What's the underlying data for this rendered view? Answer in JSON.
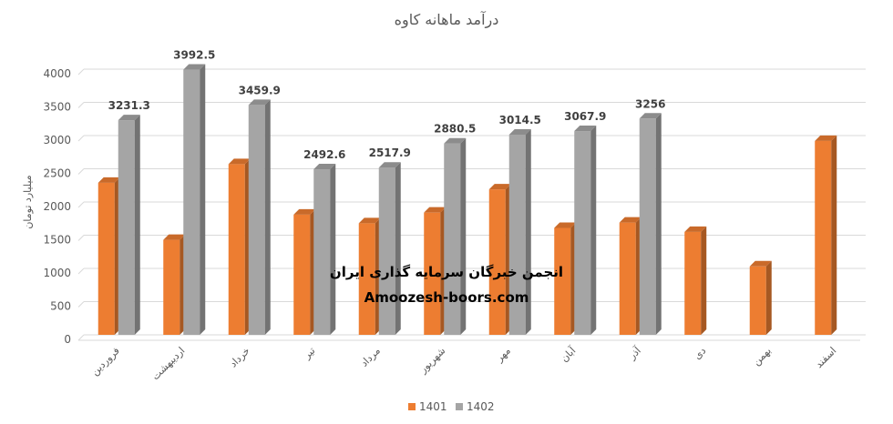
{
  "chart_data": {
    "type": "bar",
    "title": "درآمد ماهانه کاوه",
    "ylabel": "میلیارد تومان",
    "xlabel": "",
    "ylim": [
      0,
      4000
    ],
    "yticks": [
      0,
      500,
      1000,
      1500,
      2000,
      2500,
      3000,
      3500,
      4000
    ],
    "grid": true,
    "legend_position": "bottom",
    "categories": [
      "فروردین",
      "اردیبهشت",
      "خرداد",
      "تیر",
      "مرداد",
      "شهریور",
      "مهر",
      "آبان",
      "آذر",
      "دی",
      "بهمن",
      "اسفند"
    ],
    "series": [
      {
        "name": "1401",
        "color": "#ED7D31",
        "values": [
          2290,
          1430,
          2570,
          1810,
          1680,
          1840,
          2190,
          1610,
          1690,
          1550,
          1030,
          2920
        ],
        "data_labels": false
      },
      {
        "name": "1402",
        "color": "#A5A5A5",
        "values": [
          3231.3,
          3992.5,
          3459.9,
          2492.6,
          2517.9,
          2880.5,
          3014.5,
          3067.9,
          3256,
          null,
          null,
          null
        ],
        "data_labels": true
      }
    ]
  },
  "watermark": {
    "line1": "انجمن خبرگان سرمایه گذاری ایران",
    "line2": "Amoozesh-boors.com"
  }
}
